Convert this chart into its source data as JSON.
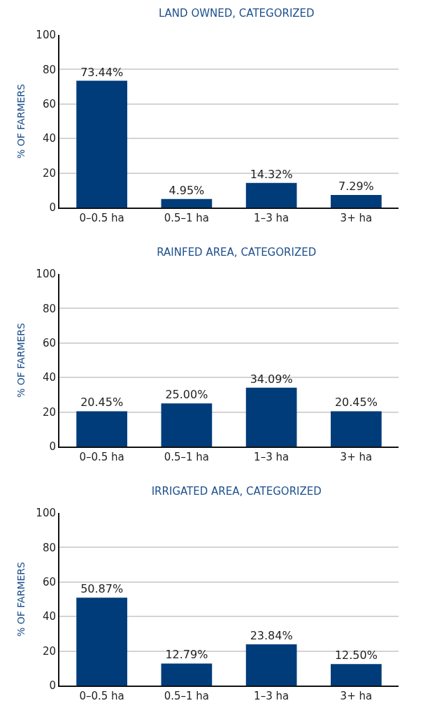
{
  "chart_data": [
    {
      "type": "bar",
      "title": "LAND OWNED, CATEGORIZED",
      "ylabel": "% OF FARMERS",
      "categories": [
        "0–0.5 ha",
        "0.5–1 ha",
        "1–3 ha",
        "3+ ha"
      ],
      "values": [
        73.44,
        4.95,
        14.32,
        7.29
      ],
      "value_labels": [
        "73.44%",
        "4.95%",
        "14.32%",
        "7.29%"
      ],
      "color": "#003c7a",
      "ylim": [
        0,
        100
      ],
      "yticks": [
        0,
        20,
        40,
        60,
        80,
        100
      ],
      "grid": "y"
    },
    {
      "type": "bar",
      "title": "RAINFED AREA, CATEGORIZED",
      "ylabel": "% OF FARMERS",
      "categories": [
        "0–0.5 ha",
        "0.5–1 ha",
        "1–3 ha",
        "3+ ha"
      ],
      "values": [
        20.45,
        25.0,
        34.09,
        20.45
      ],
      "value_labels": [
        "20.45%",
        "25.00%",
        "34.09%",
        "20.45%"
      ],
      "color": "#003c7a",
      "ylim": [
        0,
        100
      ],
      "yticks": [
        0,
        20,
        40,
        60,
        80,
        100
      ],
      "grid": "y"
    },
    {
      "type": "bar",
      "title": "IRRIGATED AREA, CATEGORIZED",
      "ylabel": "% OF FARMERS",
      "categories": [
        "0–0.5 ha",
        "0.5–1 ha",
        "1–3 ha",
        "3+ ha"
      ],
      "values": [
        50.87,
        12.79,
        23.84,
        12.5
      ],
      "value_labels": [
        "50.87%",
        "12.79%",
        "23.84%",
        "12.50%"
      ],
      "color": "#003c7a",
      "ylim": [
        0,
        100
      ],
      "yticks": [
        0,
        20,
        40,
        60,
        80,
        100
      ],
      "grid": "y"
    }
  ]
}
